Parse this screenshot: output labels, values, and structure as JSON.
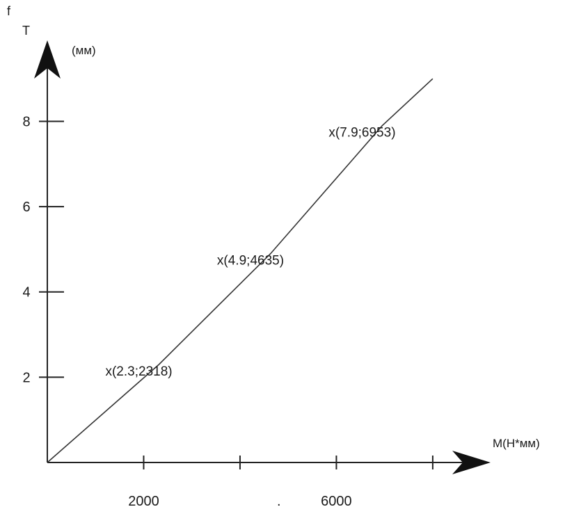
{
  "chart_data": {
    "type": "line",
    "title": "",
    "y_axis": {
      "symbol": "f",
      "subscript": "T",
      "unit": "(мм)"
    },
    "x_axis": {
      "label": "M(Н*мм)"
    },
    "y_ticks": [
      2,
      4,
      6,
      8
    ],
    "y_tick_labels": [
      "2",
      "4",
      "6",
      "8"
    ],
    "x_ticks": [
      2000,
      4000,
      6000,
      8000
    ],
    "x_tick_labels": [
      "2000",
      "",
      "6000",
      ""
    ],
    "xlim": [
      0,
      9200
    ],
    "ylim": [
      0,
      9.9
    ],
    "grid": false,
    "series": [
      {
        "x": [
          0,
          2318,
          4635,
          6953,
          8000
        ],
        "y": [
          0,
          2.3,
          4.9,
          7.9,
          9.0
        ]
      }
    ],
    "points": [
      {
        "x": 2318,
        "y": 2.3,
        "label": "x(2.3;2318)"
      },
      {
        "x": 4635,
        "y": 4.9,
        "label": "x(4.9;4635)"
      },
      {
        "x": 6953,
        "y": 7.9,
        "label": "x(7.9;6953)"
      }
    ],
    "stray_mark": "."
  }
}
